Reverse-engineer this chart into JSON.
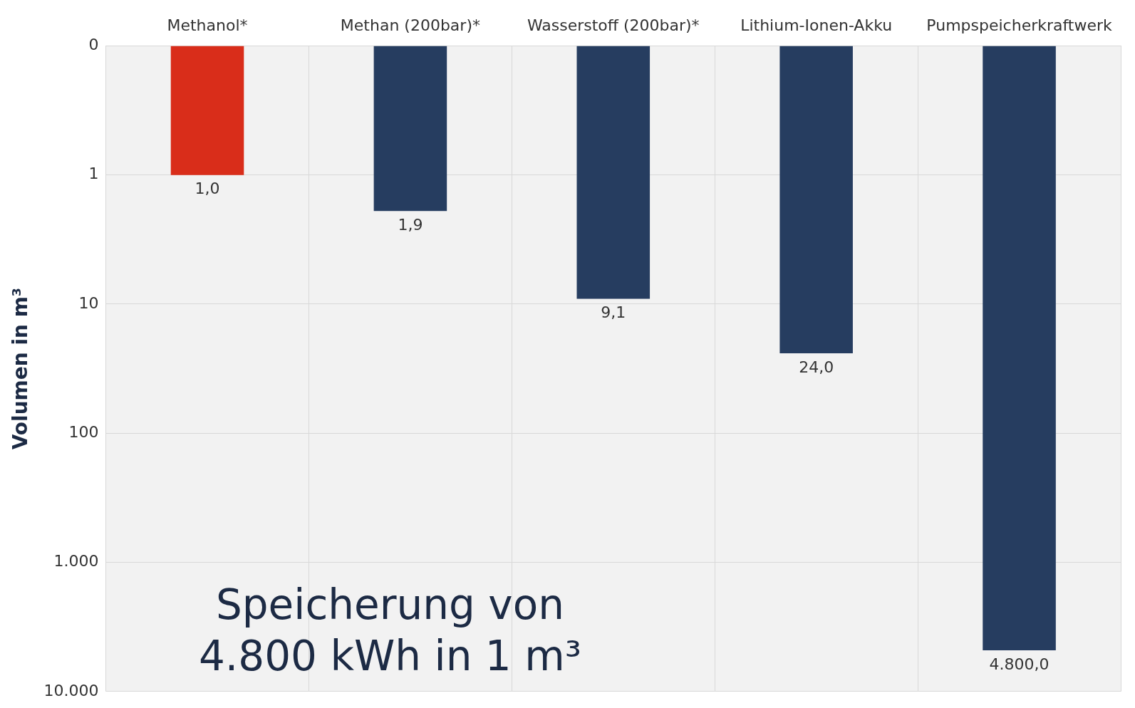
{
  "chart_data": {
    "type": "bar",
    "ylabel": "Volumen in m³",
    "categories": [
      "Methanol*",
      "Methan (200bar)*",
      "Wasserstoff (200bar)*",
      "Lithium-Ionen-Akku",
      "Pumpspeicherkraftwerk"
    ],
    "values": [
      1.0,
      1.9,
      9.1,
      24.0,
      4800.0
    ],
    "colors": [
      "#d92d1a",
      "#263d60",
      "#263d60",
      "#263d60",
      "#263d60"
    ],
    "value_labels": [
      "1,0",
      "1,9",
      "9,1",
      "24,0",
      "4.800,0"
    ],
    "log": true,
    "ylim": [
      10000,
      0.1
    ],
    "yticks": [
      {
        "value": 0.1,
        "label": "0"
      },
      1,
      10,
      100,
      {
        "value": 1000,
        "label": "1.000"
      },
      {
        "value": 10000,
        "label": "10.000"
      }
    ],
    "grid": true,
    "annotations": [
      "Speicherung von\n4.800 kWh in 1 m³"
    ]
  }
}
